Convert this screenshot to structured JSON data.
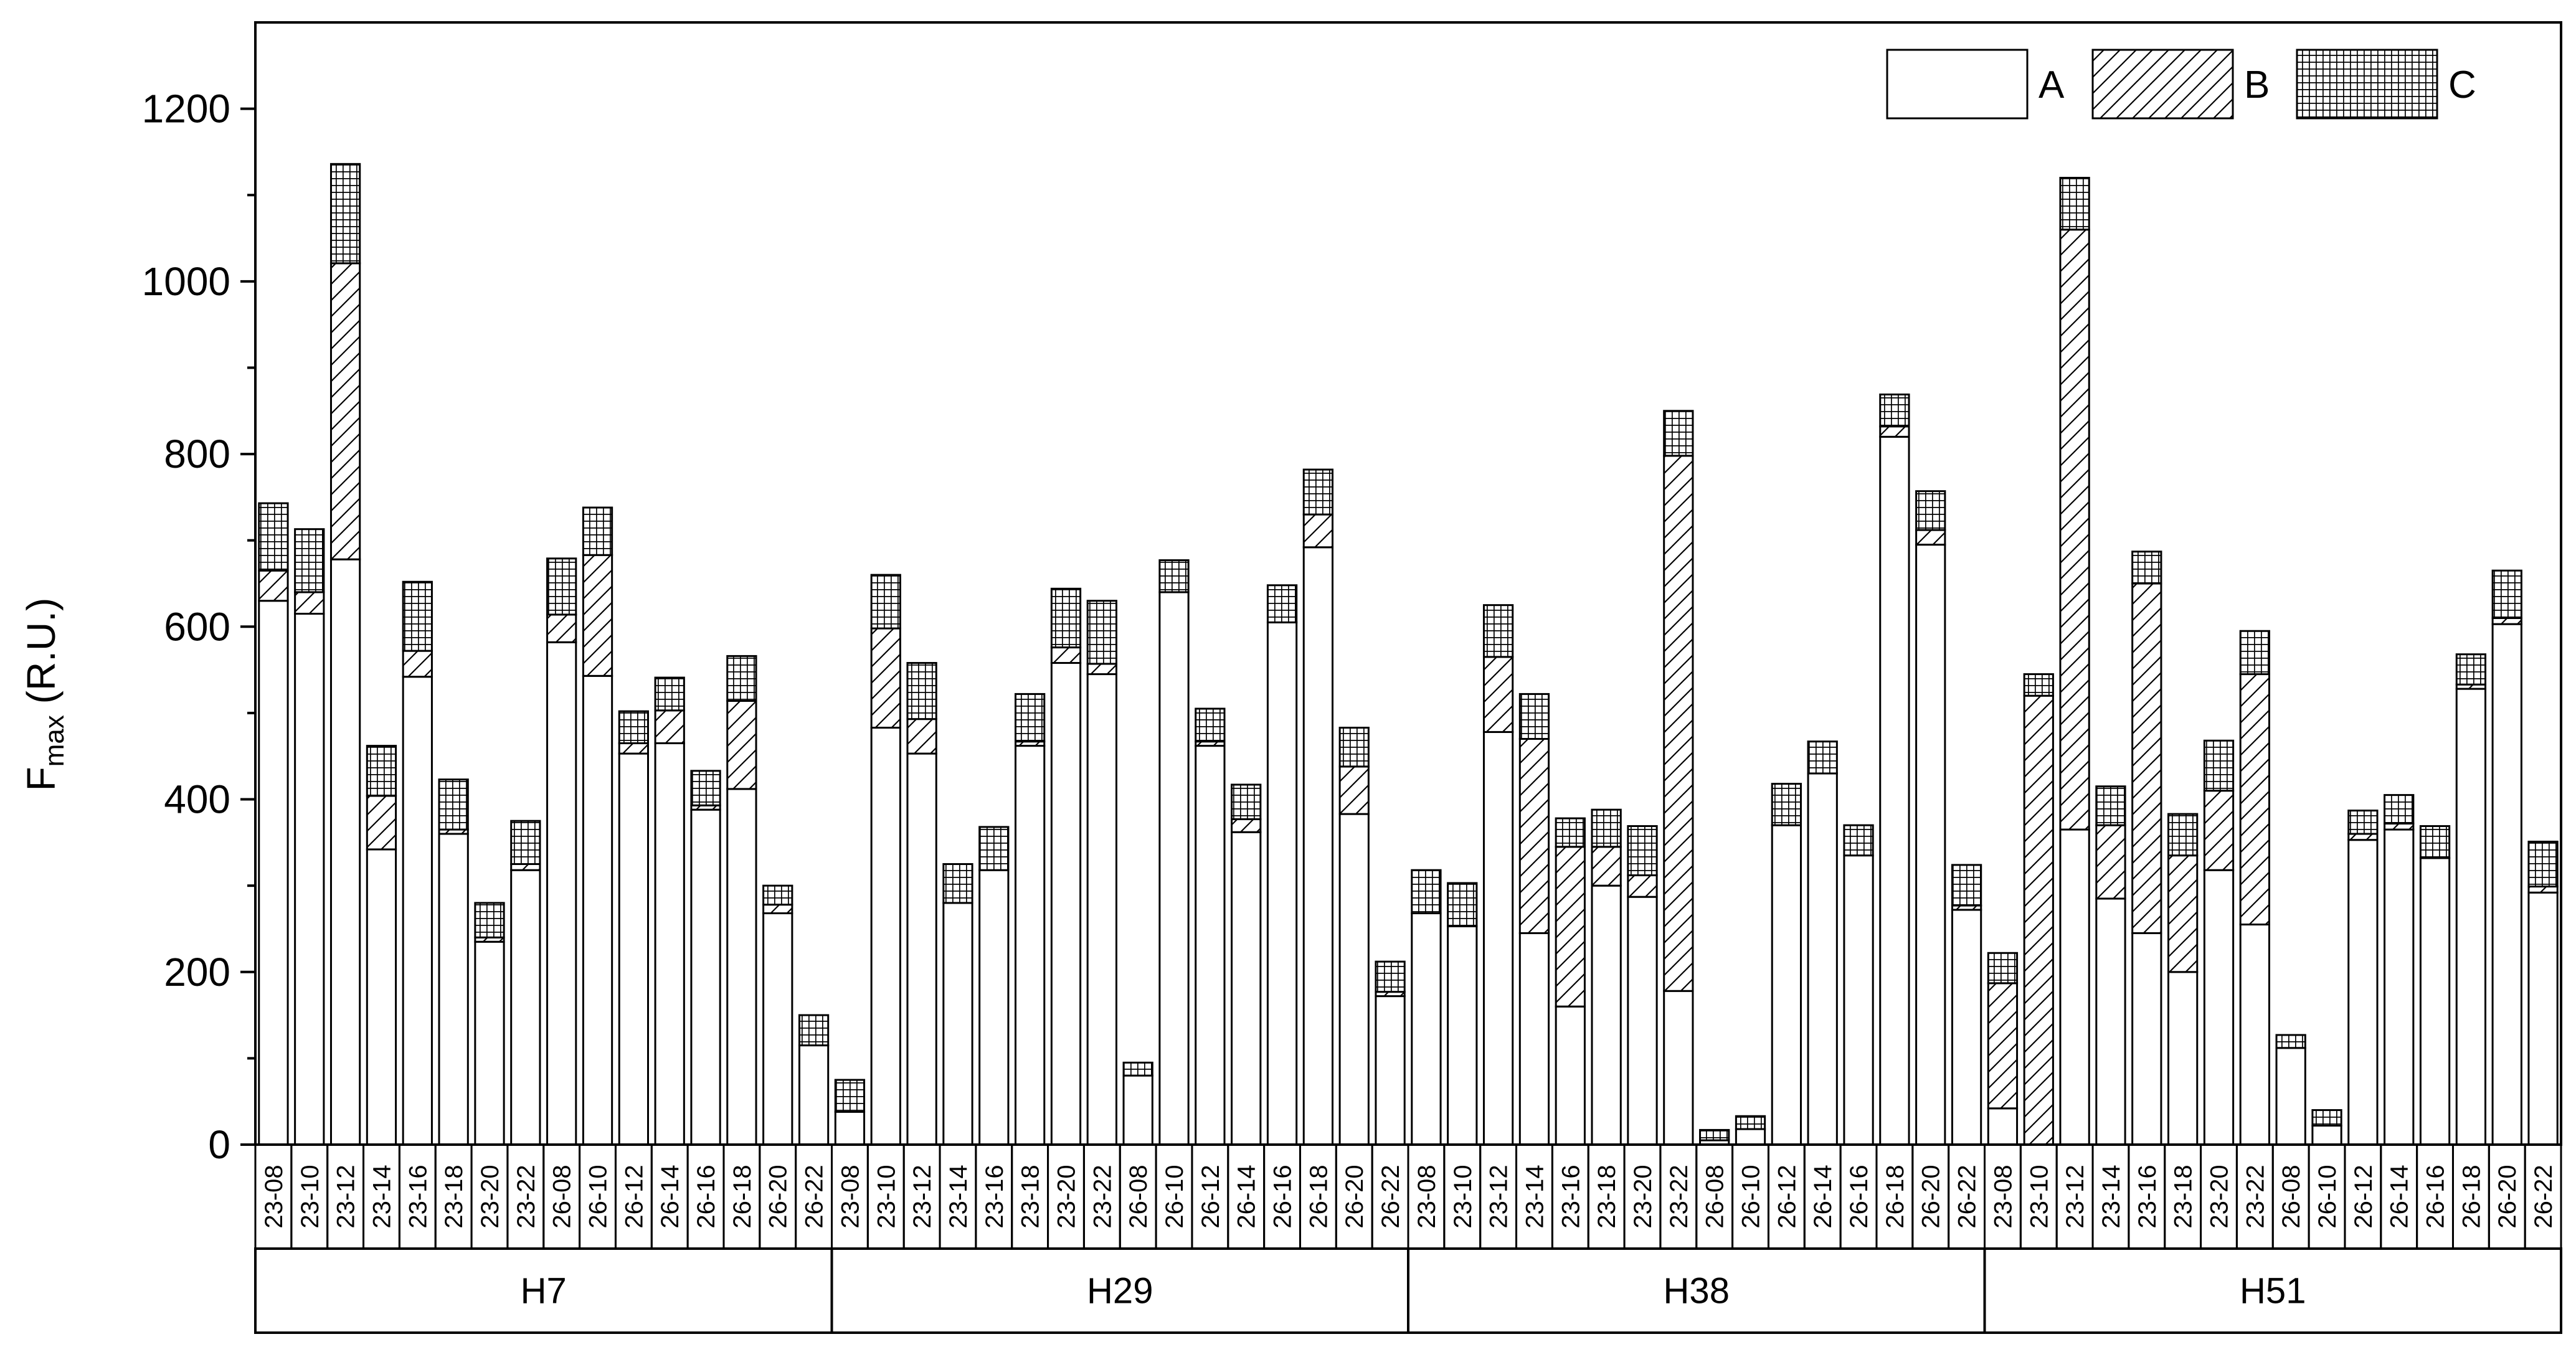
{
  "chart_data": {
    "type": "bar",
    "stacked": true,
    "ylabel_main": "F",
    "ylabel_sub": "max",
    "ylabel_unit": " (R.U.)",
    "ylim": [
      0,
      1300
    ],
    "yticks": [
      0,
      200,
      400,
      600,
      800,
      1000,
      1200
    ],
    "legend_position": "top-right",
    "group_labels": [
      "H7",
      "H29",
      "H38",
      "H51"
    ],
    "categories": [
      "23-08",
      "23-10",
      "23-12",
      "23-14",
      "23-16",
      "23-18",
      "23-20",
      "23-22",
      "26-08",
      "26-10",
      "26-12",
      "26-14",
      "26-16",
      "26-18",
      "26-20",
      "26-22"
    ],
    "series": [
      {
        "name": "A",
        "pattern": "none"
      },
      {
        "name": "B",
        "pattern": "hatch"
      },
      {
        "name": "C",
        "pattern": "grid"
      }
    ],
    "groups": [
      {
        "name": "H7",
        "A": [
          630,
          615,
          678,
          342,
          542,
          360,
          235,
          318,
          582,
          543,
          453,
          465,
          388,
          412,
          268,
          115
        ],
        "B": [
          35,
          25,
          343,
          62,
          30,
          5,
          5,
          7,
          32,
          140,
          12,
          38,
          5,
          102,
          10,
          0
        ],
        "C": [
          78,
          73,
          115,
          58,
          80,
          58,
          40,
          50,
          65,
          55,
          37,
          38,
          40,
          52,
          22,
          35
        ]
      },
      {
        "name": "H29",
        "A": [
          38,
          483,
          453,
          280,
          318,
          462,
          558,
          545,
          80,
          640,
          462,
          362,
          605,
          692,
          383,
          172
        ],
        "B": [
          0,
          115,
          40,
          0,
          0,
          5,
          18,
          12,
          0,
          0,
          5,
          15,
          0,
          38,
          55,
          5
        ],
        "C": [
          37,
          62,
          65,
          45,
          50,
          55,
          68,
          73,
          15,
          37,
          38,
          40,
          43,
          52,
          45,
          35
        ]
      },
      {
        "name": "H38",
        "A": [
          268,
          253,
          478,
          245,
          160,
          300,
          287,
          178,
          5,
          18,
          370,
          430,
          335,
          820,
          695,
          272
        ],
        "B": [
          0,
          0,
          87,
          225,
          185,
          45,
          25,
          620,
          0,
          0,
          0,
          0,
          0,
          12,
          17,
          5
        ],
        "C": [
          50,
          50,
          60,
          52,
          33,
          43,
          57,
          52,
          12,
          15,
          48,
          37,
          35,
          37,
          45,
          47
        ]
      },
      {
        "name": "H51",
        "A": [
          42,
          0,
          365,
          285,
          245,
          200,
          318,
          255,
          112,
          22,
          353,
          365,
          332,
          528,
          603,
          292
        ],
        "B": [
          145,
          520,
          695,
          85,
          405,
          135,
          92,
          290,
          0,
          0,
          7,
          7,
          0,
          5,
          7,
          7
        ],
        "C": [
          35,
          25,
          60,
          45,
          37,
          48,
          58,
          50,
          15,
          18,
          27,
          33,
          37,
          35,
          55,
          52
        ]
      }
    ]
  }
}
